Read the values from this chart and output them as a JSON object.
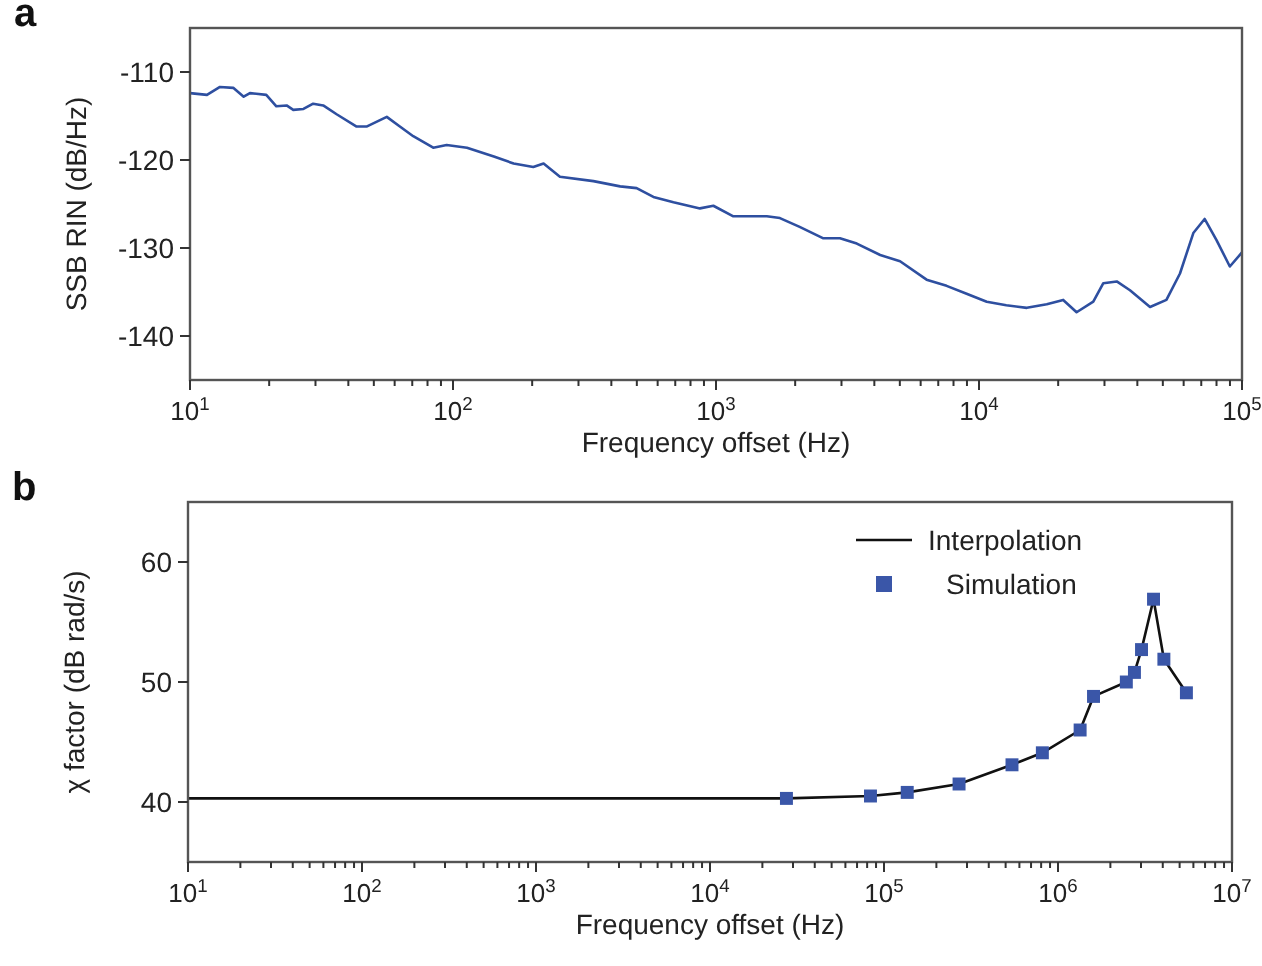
{
  "chart_data": [
    {
      "type": "line",
      "title": "a",
      "xlabel": "Frequency offset (Hz)",
      "ylabel": "SSB RIN (dB/Hz)",
      "log": "x",
      "grid": false,
      "legend": false,
      "xlim": [
        10,
        100000
      ],
      "ylim": [
        -145,
        -105
      ],
      "xticks": [
        {
          "value": 10,
          "label": "10$^{1}$"
        },
        {
          "value": 20,
          "label": null
        },
        {
          "value": 30,
          "label": null
        },
        {
          "value": 40,
          "label": null
        },
        {
          "value": 50,
          "label": null
        },
        {
          "value": 60,
          "label": null
        },
        {
          "value": 70,
          "label": null
        },
        {
          "value": 80,
          "label": null
        },
        {
          "value": 90,
          "label": null
        },
        {
          "value": 100,
          "label": "10$^{2}$"
        },
        {
          "value": 200,
          "label": null
        },
        {
          "value": 300,
          "label": null
        },
        {
          "value": 400,
          "label": null
        },
        {
          "value": 500,
          "label": null
        },
        {
          "value": 600,
          "label": null
        },
        {
          "value": 700,
          "label": null
        },
        {
          "value": 800,
          "label": null
        },
        {
          "value": 900,
          "label": null
        },
        {
          "value": 1000,
          "label": "10$^{3}$"
        },
        {
          "value": 2000,
          "label": null
        },
        {
          "value": 3000,
          "label": null
        },
        {
          "value": 4000,
          "label": null
        },
        {
          "value": 5000,
          "label": null
        },
        {
          "value": 6000,
          "label": null
        },
        {
          "value": 7000,
          "label": null
        },
        {
          "value": 8000,
          "label": null
        },
        {
          "value": 9000,
          "label": null
        },
        {
          "value": 10000,
          "label": "10$^{4}$"
        },
        {
          "value": 20000,
          "label": null
        },
        {
          "value": 30000,
          "label": null
        },
        {
          "value": 40000,
          "label": null
        },
        {
          "value": 50000,
          "label": null
        },
        {
          "value": 60000,
          "label": null
        },
        {
          "value": 70000,
          "label": null
        },
        {
          "value": 80000,
          "label": null
        },
        {
          "value": 90000,
          "label": null
        },
        {
          "value": 100000,
          "label": "10$^{5}$"
        }
      ],
      "yticks": [
        -140,
        -130,
        -120,
        -110
      ],
      "series": [
        {
          "color": "#2e4fa0",
          "marker": "none",
          "x": [
            10,
            11.6,
            13,
            14.6,
            16,
            16.9,
            19.5,
            21.3,
            23.3,
            24.7,
            27,
            29.4,
            32.1,
            36.1,
            43,
            46.9,
            56,
            62.8,
            70.6,
            84.1,
            94.6,
            113,
            143,
            170,
            202,
            221,
            255,
            342,
            432,
            499,
            578,
            689,
            869,
            977,
            1164,
            1560,
            1750,
            2080,
            2560,
            2960,
            3430,
            4210,
            5010,
            6320,
            7530,
            8970,
            10700,
            12700,
            15200,
            18100,
            20900,
            23500,
            27200,
            29700,
            33400,
            37500,
            44700,
            51600,
            58100,
            65300,
            72100,
            80000,
            89900,
            100000
          ],
          "values": [
            -112.4,
            -112.6,
            -111.7,
            -111.8,
            -112.8,
            -112.4,
            -112.6,
            -113.9,
            -113.8,
            -114.3,
            -114.2,
            -113.6,
            -113.8,
            -114.8,
            -116.2,
            -116.2,
            -115.1,
            -116.2,
            -117.3,
            -118.6,
            -118.3,
            -118.6,
            -119.6,
            -120.4,
            -120.8,
            -120.4,
            -121.9,
            -122.4,
            -123,
            -123.2,
            -124.2,
            -124.8,
            -125.5,
            -125.2,
            -126.4,
            -126.4,
            -126.6,
            -127.6,
            -128.9,
            -128.9,
            -129.5,
            -130.8,
            -131.5,
            -133.6,
            -134.3,
            -135.2,
            -136.1,
            -136.5,
            -136.8,
            -136.4,
            -135.9,
            -137.3,
            -136.1,
            -134,
            -133.8,
            -134.8,
            -136.7,
            -135.9,
            -132.9,
            -128.3,
            -126.7,
            -129.1,
            -132.1,
            -130.5
          ]
        }
      ]
    },
    {
      "type": "scatter",
      "title": "b",
      "xlabel": "Frequency offset (Hz)",
      "ylabel": "χ factor (dB rad/s)",
      "log": "x",
      "grid": false,
      "legend": "top right",
      "xlim": [
        10,
        10000000
      ],
      "ylim": [
        35,
        65
      ],
      "xticks": [
        {
          "value": 10,
          "label": "10$^{1}$"
        },
        {
          "value": 20,
          "label": null
        },
        {
          "value": 30,
          "label": null
        },
        {
          "value": 40,
          "label": null
        },
        {
          "value": 50,
          "label": null
        },
        {
          "value": 60,
          "label": null
        },
        {
          "value": 70,
          "label": null
        },
        {
          "value": 80,
          "label": null
        },
        {
          "value": 90,
          "label": null
        },
        {
          "value": 100,
          "label": "10$^{2}$"
        },
        {
          "value": 200,
          "label": null
        },
        {
          "value": 300,
          "label": null
        },
        {
          "value": 400,
          "label": null
        },
        {
          "value": 500,
          "label": null
        },
        {
          "value": 600,
          "label": null
        },
        {
          "value": 700,
          "label": null
        },
        {
          "value": 800,
          "label": null
        },
        {
          "value": 900,
          "label": null
        },
        {
          "value": 1000,
          "label": "10$^{3}$"
        },
        {
          "value": 2000,
          "label": null
        },
        {
          "value": 3000,
          "label": null
        },
        {
          "value": 4000,
          "label": null
        },
        {
          "value": 5000,
          "label": null
        },
        {
          "value": 6000,
          "label": null
        },
        {
          "value": 7000,
          "label": null
        },
        {
          "value": 8000,
          "label": null
        },
        {
          "value": 9000,
          "label": null
        },
        {
          "value": 10000,
          "label": "10$^{4}$"
        },
        {
          "value": 20000,
          "label": null
        },
        {
          "value": 30000,
          "label": null
        },
        {
          "value": 40000,
          "label": null
        },
        {
          "value": 50000,
          "label": null
        },
        {
          "value": 60000,
          "label": null
        },
        {
          "value": 70000,
          "label": null
        },
        {
          "value": 80000,
          "label": null
        },
        {
          "value": 90000,
          "label": null
        },
        {
          "value": 100000,
          "label": "10$^{5}$"
        },
        {
          "value": 200000,
          "label": null
        },
        {
          "value": 300000,
          "label": null
        },
        {
          "value": 400000,
          "label": null
        },
        {
          "value": 500000,
          "label": null
        },
        {
          "value": 600000,
          "label": null
        },
        {
          "value": 700000,
          "label": null
        },
        {
          "value": 800000,
          "label": null
        },
        {
          "value": 900000,
          "label": null
        },
        {
          "value": 1000000,
          "label": "10$^{6}$"
        },
        {
          "value": 2000000,
          "label": null
        },
        {
          "value": 3000000,
          "label": null
        },
        {
          "value": 4000000,
          "label": null
        },
        {
          "value": 5000000,
          "label": null
        },
        {
          "value": 6000000,
          "label": null
        },
        {
          "value": 7000000,
          "label": null
        },
        {
          "value": 8000000,
          "label": null
        },
        {
          "value": 9000000,
          "label": null
        },
        {
          "value": 10000000,
          "label": "10$^{7}$"
        }
      ],
      "yticks": [
        40,
        50,
        60
      ],
      "series": [
        {
          "type": "line",
          "name": "Interpolation",
          "color": "#111111",
          "marker": "none",
          "x": [
            10,
            27500,
            83600,
            136000,
            270000,
            544000,
            813000,
            1340000,
            1600000,
            2470000,
            2750000,
            3020000,
            3540000,
            4060000,
            5470000
          ],
          "values": [
            40.3,
            40.3,
            40.5,
            40.8,
            41.5,
            43.1,
            44.1,
            46,
            48.8,
            50,
            50.8,
            52.7,
            56.9,
            51.9,
            49.1
          ]
        },
        {
          "name": "Simulation",
          "color": "#3a56a8",
          "marker": "square",
          "x": [
            27500,
            83600,
            136000,
            270000,
            544000,
            813000,
            1340000,
            1600000,
            2470000,
            2750000,
            3020000,
            3540000,
            4060000,
            5470000
          ],
          "values": [
            40.3,
            40.5,
            40.8,
            41.5,
            43.1,
            44.1,
            46,
            48.8,
            50,
            50.8,
            52.7,
            56.9,
            51.9,
            49.1
          ]
        }
      ]
    }
  ]
}
